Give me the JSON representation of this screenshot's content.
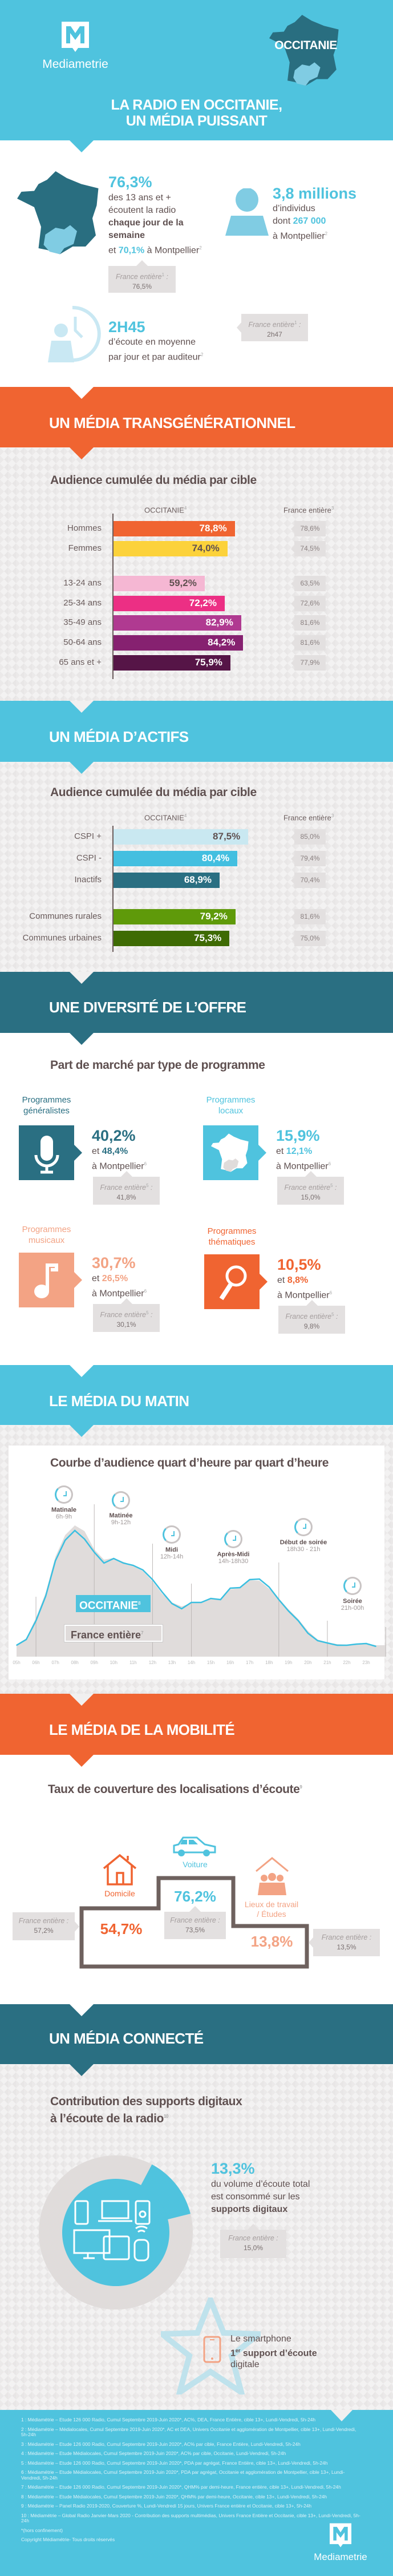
{
  "brand": {
    "name": "Mediametrie",
    "region": "OCCITANIE"
  },
  "colors": {
    "blue": "#4fc3de",
    "orange": "#f06431",
    "teal": "#2a6f82",
    "text": "#5f5050",
    "grey_box": "#e3e0e0"
  },
  "header": {
    "title_line1": "LA RADIO EN OCCITANIE,",
    "title_line2": "UN MÉDIA PUISSANT"
  },
  "intro": {
    "daily_reach": {
      "value": "76,3%",
      "line1": "des 13 ans et +",
      "line2": "écoutent la radio",
      "bold1": "chaque jour de la",
      "bold2": "semaine",
      "et": "et",
      "montpellier_value": "70,1%",
      "montpellier_label": "à Montpellier",
      "note": "2",
      "france_label": "France entière",
      "france_note": "1",
      "france_value": "76,5%"
    },
    "individuals": {
      "value": "3,8 millions",
      "line1": "d’individus",
      "dont": "dont",
      "montpellier_value": "267 000",
      "montpellier_label": "à Montpellier",
      "note": "2"
    },
    "duration": {
      "value": "2H45",
      "line1": "d’écoute en moyenne",
      "line2": "par jour et par auditeur",
      "note": "2",
      "france_label": "France entière",
      "france_note": "1",
      "france_value": "2h47"
    }
  },
  "sections": {
    "transgen": {
      "title": "UN MÉDIA TRANSGÉNÉRATIONNEL",
      "subtitle": "Audience cumulée du média par cible",
      "col_region": "OCCITANIE",
      "col_region_note": "4",
      "col_france": "France entière",
      "col_france_note": "3"
    },
    "actifs": {
      "title": "UN MÉDIA D’ACTIFS",
      "subtitle": "Audience cumulée du média par cible",
      "col_region": "OCCITANIE",
      "col_region_note": "4",
      "col_france": "France entière",
      "col_france_note": "3"
    },
    "offre": {
      "title": "UNE DIVERSITÉ DE L’OFFRE",
      "subtitle": "Part de marché par type de programme"
    },
    "matin": {
      "title": "LE MÉDIA DU MATIN",
      "subtitle": "Courbe d’audience quart d’heure par quart d’heure"
    },
    "mobilite": {
      "title": "LE MÉDIA DE LA MOBILITÉ",
      "subtitle": "Taux de couverture des localisations d’écoute",
      "subtitle_note": "9"
    },
    "connecte": {
      "title": "UN MÉDIA CONNECTÉ",
      "subtitle_line1": "Contribution des supports digitaux",
      "subtitle_line2": "à l’écoute de la radio",
      "subtitle_note": "10"
    }
  },
  "chart_data": [
    {
      "type": "bar",
      "orientation": "horizontal",
      "section": "transgen",
      "groups": [
        [
          {
            "label": "Hommes",
            "value": 78.8,
            "display": "78,8%",
            "france": "78,6%",
            "color": "#f06431",
            "text_color": "#ffffff"
          },
          {
            "label": "Femmes",
            "value": 74.0,
            "display": "74,0%",
            "france": "74,5%",
            "color": "#fcd23b",
            "text_color": "#5f5050"
          }
        ],
        [
          {
            "label": "13-24 ans",
            "value": 59.2,
            "display": "59,2%",
            "france": "63,5%",
            "color": "#f5b7d3",
            "text_color": "#5f5050"
          },
          {
            "label": "25-34 ans",
            "value": 72.2,
            "display": "72,2%",
            "france": "72,6%",
            "color": "#ec2f84",
            "text_color": "#ffffff"
          },
          {
            "label": "35-49 ans",
            "value": 82.9,
            "display": "82,9%",
            "france": "81,6%",
            "color": "#b03a91",
            "text_color": "#ffffff"
          },
          {
            "label": "50-64 ans",
            "value": 84.2,
            "display": "84,2%",
            "france": "81,6%",
            "color": "#862170",
            "text_color": "#ffffff"
          },
          {
            "label": "65 ans et +",
            "value": 75.9,
            "display": "75,9%",
            "france": "77,9%",
            "color": "#561547",
            "text_color": "#ffffff"
          }
        ]
      ]
    },
    {
      "type": "bar",
      "orientation": "horizontal",
      "section": "actifs",
      "groups": [
        [
          {
            "label": "CSPI +",
            "value": 87.5,
            "display": "87,5%",
            "france": "85,0%",
            "color": "#c9e8f1",
            "text_color": "#5f5050"
          },
          {
            "label": "CSPI -",
            "value": 80.4,
            "display": "80,4%",
            "france": "79,4%",
            "color": "#43bfe0",
            "text_color": "#ffffff"
          },
          {
            "label": "Inactifs",
            "value": 68.9,
            "display": "68,9%",
            "france": "70,4%",
            "color": "#2a6f82",
            "text_color": "#ffffff"
          }
        ],
        [
          {
            "label": "Communes rurales",
            "value": 79.2,
            "display": "79,2%",
            "france": "81,6%",
            "color": "#5f9a0a",
            "text_color": "#ffffff"
          },
          {
            "label": "Communes urbaines",
            "value": 75.3,
            "display": "75,3%",
            "france": "75,0%",
            "color": "#3e6b04",
            "text_color": "#ffffff"
          }
        ]
      ]
    },
    {
      "type": "area",
      "x": [
        "5h00",
        "5h30",
        "6h00",
        "6h30",
        "7h00",
        "7h30",
        "8h00",
        "8h30",
        "9h00",
        "9h30",
        "10h00",
        "10h30",
        "11h00",
        "11h30",
        "12h00",
        "12h30",
        "13h00",
        "13h30",
        "14h00",
        "14h30",
        "15h00",
        "15h30",
        "16h00",
        "16h30",
        "17h00",
        "17h30",
        "18h00",
        "18h30",
        "19h00",
        "19h30",
        "20h00",
        "20h30",
        "21h00",
        "21h30",
        "22h00",
        "22h30",
        "23h00",
        "23h30"
      ],
      "x_ticks": [
        "05h",
        "06h",
        "07h",
        "08h",
        "09h",
        "10h",
        "11h",
        "12h",
        "13h",
        "14h",
        "15h",
        "16h",
        "17h",
        "18h",
        "19h",
        "20h",
        "21h",
        "22h",
        "23h"
      ],
      "series": [
        {
          "name": "OCCITANIE",
          "note": "8",
          "style": "line",
          "color": "#3bbfe0",
          "values": [
            2.0,
            3.0,
            6.3,
            10.6,
            16.8,
            20.4,
            22.1,
            20.6,
            18.3,
            16.4,
            17.2,
            16.4,
            16.0,
            15.2,
            13.5,
            11.3,
            9.3,
            8.4,
            9.5,
            9.5,
            10.2,
            10.0,
            12.0,
            12.1,
            13.5,
            13.6,
            12.2,
            10.0,
            8.0,
            6.3,
            4.1,
            2.8,
            2.4,
            2.0,
            2.0,
            2.2,
            2.3,
            1.8
          ]
        },
        {
          "name": "France entière",
          "note": "7",
          "style": "area",
          "color": "#e0dcdb",
          "values": [
            2.1,
            3.2,
            6.8,
            11.2,
            17.5,
            21.3,
            23.0,
            22.0,
            18.8,
            17.0,
            17.3,
            16.6,
            16.0,
            15.0,
            13.2,
            11.0,
            9.5,
            8.8,
            9.4,
            9.6,
            10.1,
            9.9,
            11.8,
            12.0,
            13.4,
            13.3,
            11.9,
            10.2,
            8.3,
            6.6,
            4.5,
            3.0,
            2.5,
            2.2,
            2.1,
            2.2,
            2.3,
            2.0
          ]
        }
      ],
      "dayparts": [
        {
          "label": "Matinale",
          "hours": "6h-9h"
        },
        {
          "label": "Matinée",
          "hours": "9h-12h"
        },
        {
          "label": "Midi",
          "hours": "12h-14h"
        },
        {
          "label": "Après-Midi",
          "hours": "14h-18h30"
        },
        {
          "label": "Début de soirée",
          "hours": "18h30 - 21h"
        },
        {
          "label": "Soirée",
          "hours": "21h-00h"
        }
      ],
      "grid": "vertical daypart separators",
      "legend": "inside-left"
    }
  ],
  "programmes": [
    {
      "title1": "Programmes",
      "title2": "généralistes",
      "value": "40,2%",
      "et": "et",
      "montpellier_value": "48,4%",
      "montpellier_label": "à Montpellier",
      "note": "6",
      "france_label": "France entière",
      "france_note": "5",
      "france_value": "41,8%",
      "color": "#2a6f82",
      "icon": "microphone-icon"
    },
    {
      "title1": "Programmes",
      "title2": "locaux",
      "value": "15,9%",
      "et": "et",
      "montpellier_value": "12,1%",
      "montpellier_label": "à Montpellier",
      "note": "6",
      "france_label": "France entière",
      "france_note": "5",
      "france_value": "15,0%",
      "color": "#4fc3de",
      "icon": "france-map-icon"
    },
    {
      "title1": "Programmes",
      "title2": "musicaux",
      "value": "30,7%",
      "et": "et",
      "montpellier_value": "26,5%",
      "montpellier_label": "à Montpellier",
      "note": "6",
      "france_label": "France entière",
      "france_note": "5",
      "france_value": "30,1%",
      "color": "#f3a384",
      "icon": "music-note-icon"
    },
    {
      "title1": "Programmes",
      "title2": "thématiques",
      "value": "10,5%",
      "et": "et",
      "montpellier_value": "8,8%",
      "montpellier_label": "à Montpellier",
      "note": "6",
      "france_label": "France entière",
      "france_note": "5",
      "france_value": "9,8%",
      "color": "#f06431",
      "icon": "magnifier-icon"
    }
  ],
  "mobilite": {
    "domicile": {
      "label": "Domicile",
      "value": "54,7%",
      "france_label": "France entière :",
      "france_value": "57,2%",
      "color": "#f06431"
    },
    "voiture": {
      "label": "Voiture",
      "value": "76,2%",
      "france_label": "France entière :",
      "france_value": "73,5%",
      "color": "#4fc3de"
    },
    "travail": {
      "label1": "Lieux de travail",
      "label2": "/ Études",
      "value": "13,8%",
      "france_label": "France entière :",
      "france_value": "13,5%",
      "color": "#f3a384"
    }
  },
  "connecte": {
    "value": "13,3%",
    "digital_share_percent": 13.3,
    "line1": "du volume d’écoute total",
    "line2": "est consommé sur les",
    "bold": "supports digitaux",
    "france_label": "France entière :",
    "france_value": "15,0%",
    "smartphone_line1": "Le smartphone",
    "smartphone_rank": "1",
    "smartphone_rank_sup": "er",
    "smartphone_bold": "support d’écoute",
    "smartphone_line3": "digitale"
  },
  "footnotes": [
    "1 : Médiamétrie – Etude 126 000 Radio, Cumul Septembre 2019-Juin 2020*, AC%, DEA, France Entière, cible 13+, Lundi-Vendredi, 5h-24h",
    "2 : Médiamétrie – Médialocales, Cumul Septembre 2019-Juin 2020*, AC et DEA, Univers Occitanie et agglomération de Montpellier, cible 13+, Lundi-Vendredi, 5h-24h",
    "3 : Médiamétrie – Etude 126 000 Radio, Cumul Septembre 2019-Juin 2020*, AC% par cible, France Entière, Lundi-Vendredi, 5h-24h",
    "4 : Médiamétrie – Etude Médialocales, Cumul Septembre 2019-Juin 2020*, AC% par cible, Occitanie, Lundi-Vendredi, 5h-24h",
    "5 : Médiamétrie – Etude 126 000 Radio, Cumul Septembre 2019-Juin 2020*, PDA par agrégat, France Entière, cible 13+, Lundi-Vendredi, 5h-24h",
    "6 : Médiamétrie – Etude Médialocales, Cumul Septembre 2019-Juin 2020*, PDA par agrégat, Occitanie et agglomération de Montpellier, cible 13+, Lundi-Vendredi, 5h-24h",
    "7 : Médiamétrie – Etude 126 000 Radio, Cumul Septembre 2019-Juin 2020*, QHM% par demi-heure, France entière, cible 13+, Lundi-Vendredi, 5h-24h",
    "8 : Médiamétrie – Etude Médialocales, Cumul Septembre 2019-Juin 2020*, QHM% par demi-heure, Occitanie, cible 13+, Lundi-Vendredi, 5h-24h",
    "9 : Médiamétrie – Panel Radio 2019-2020, Couverture %, Lundi-Vendredi 15 jours, Univers France entière et Occitanie, cible 13+, 5h-24h",
    "10 : Médiamétrie – Global Radio Janvier-Mars 2020 - Contribution des supports multimédias, Univers France Entière et Occitanie, cible 13+, Lundi-Vendredi, 5h-24h",
    "*(hors confinement)",
    "Copyright Médiamétrie- Tous droits réservés"
  ]
}
